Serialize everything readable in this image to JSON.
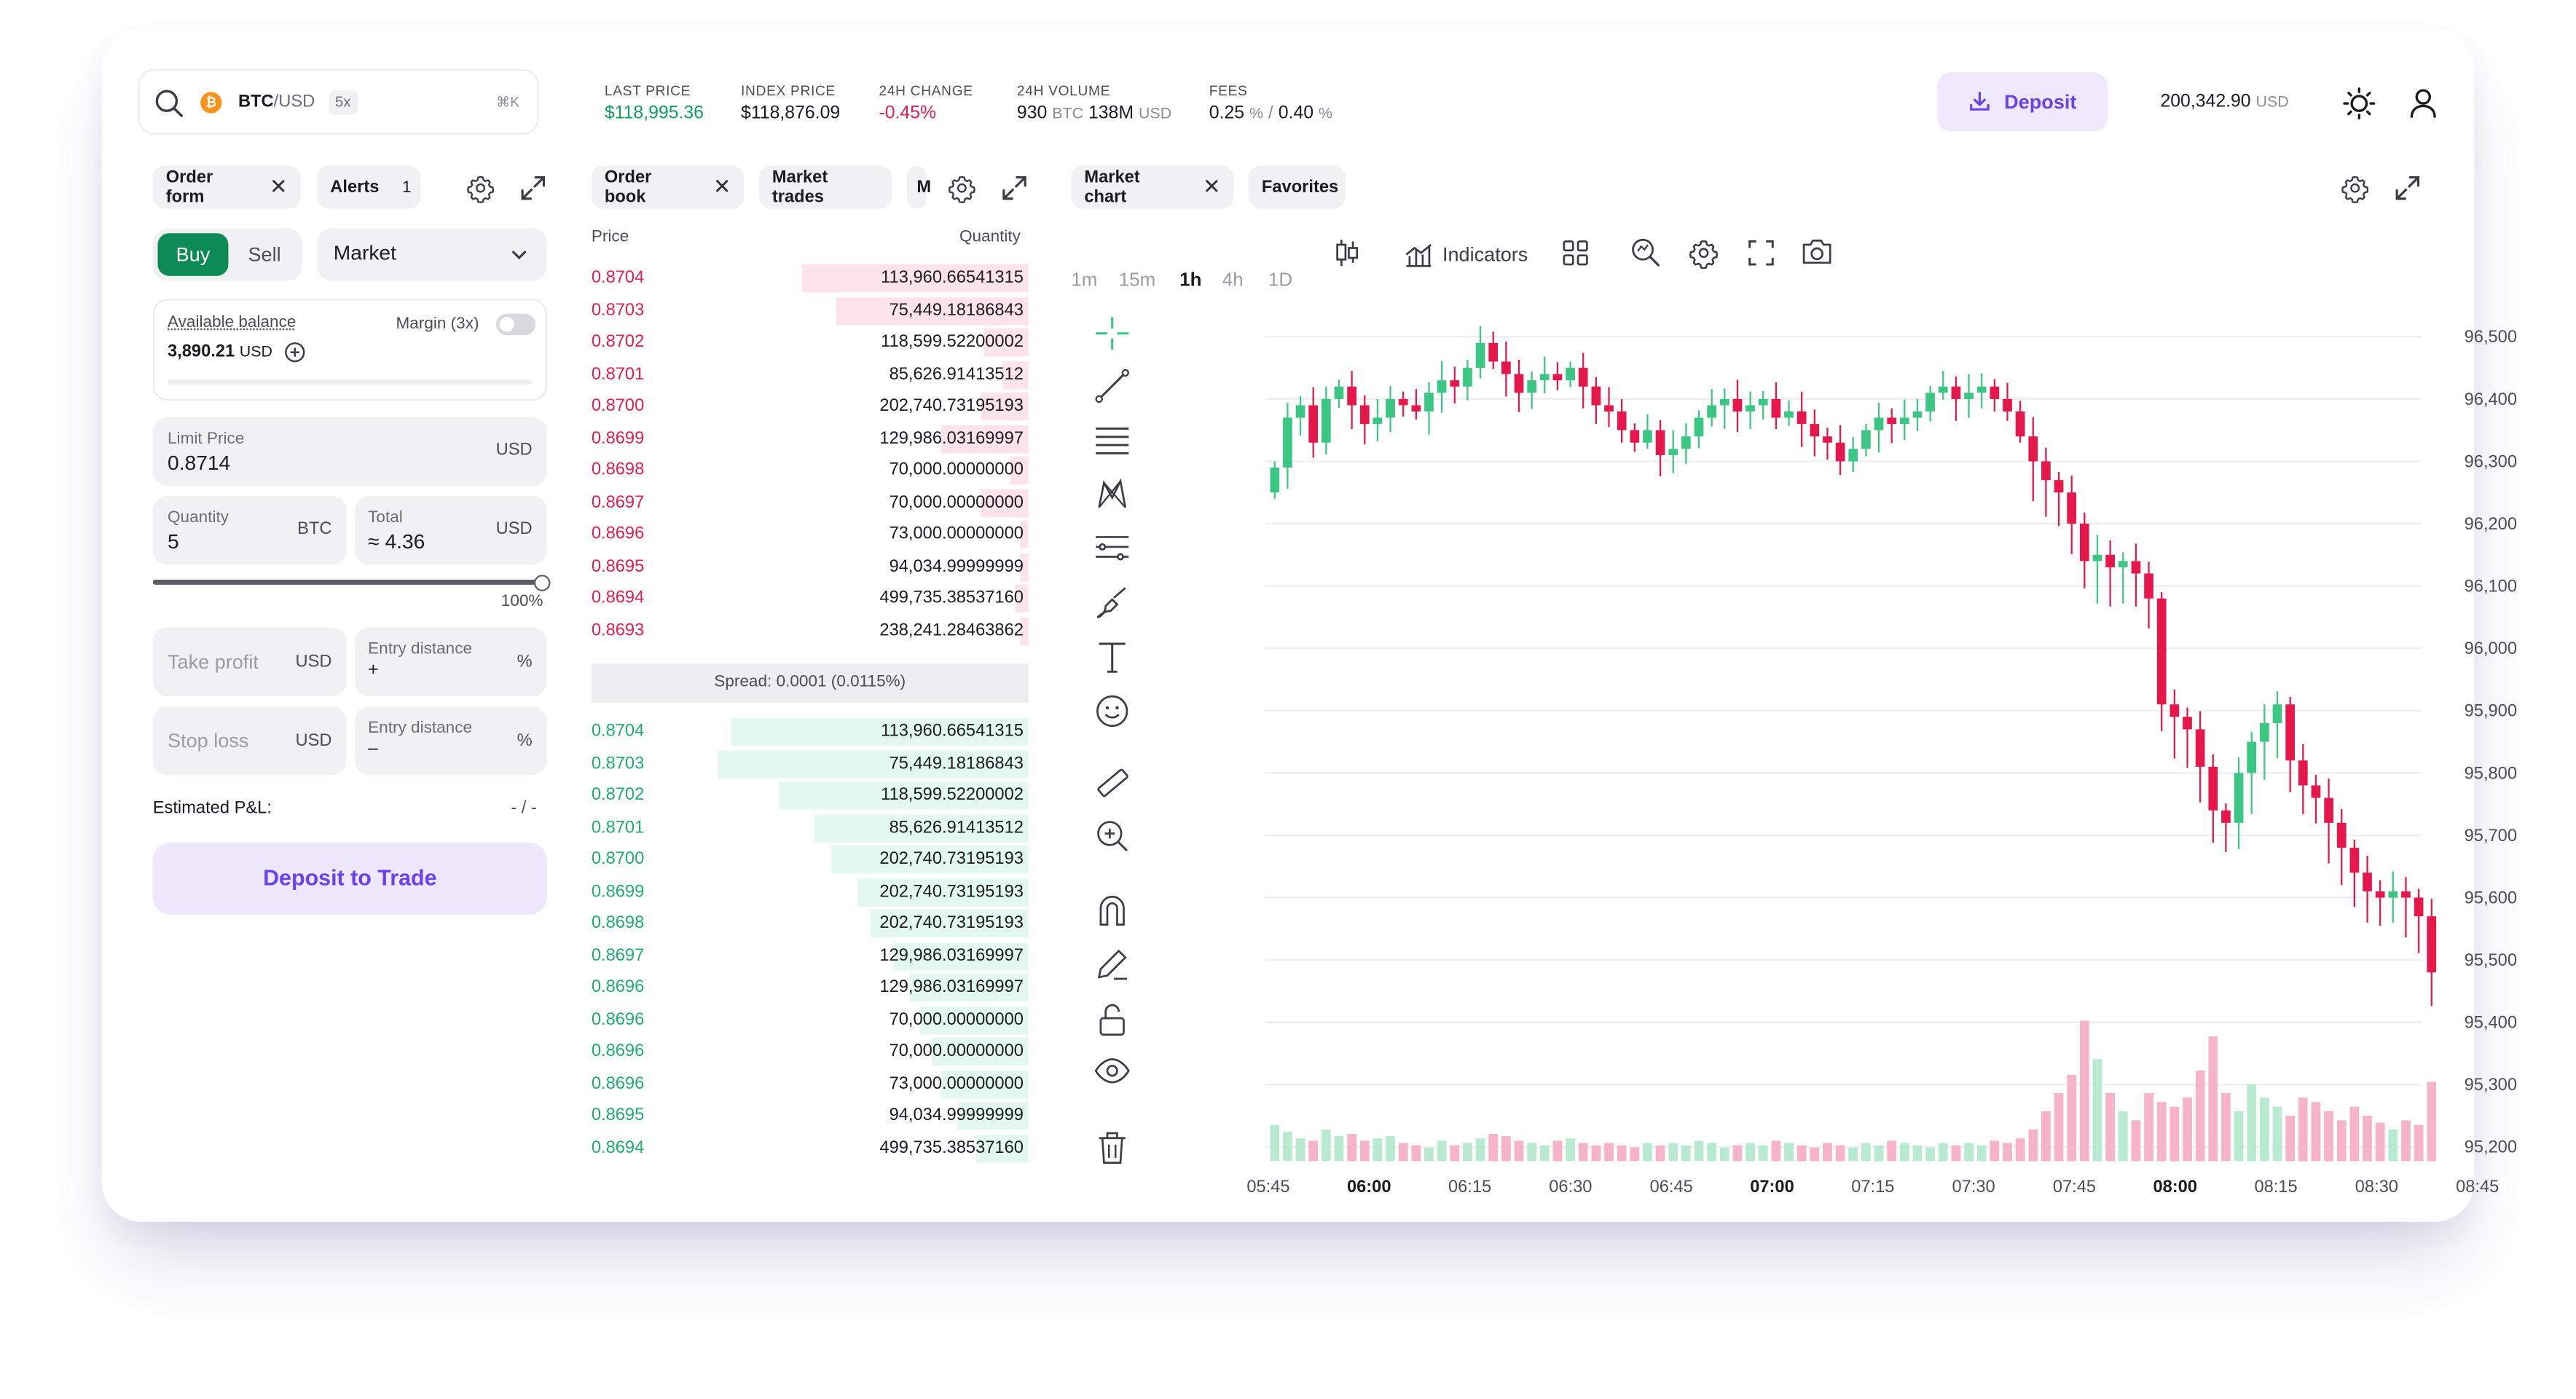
{
  "header": {
    "search": {
      "symbol": "BTC",
      "quote": "/USD",
      "leverage": "5x",
      "shortcut": "⌘K"
    },
    "stats": [
      {
        "label": "LAST PRICE",
        "value": "$118,995.36",
        "color": "#0e9f5b"
      },
      {
        "label": "INDEX PRICE",
        "value": "$118,876.09",
        "color": "#1b1b22"
      },
      {
        "label": "24H CHANGE",
        "value": "-0.45%",
        "color": "#e0204e"
      },
      {
        "label": "24H VOLUME",
        "vol1": "930",
        "vol1_unit": "BTC",
        "vol2": "138M",
        "vol2_unit": "USD"
      },
      {
        "label": "FEES",
        "fee1": "0.25",
        "fee_unit": "%",
        "sep": "/",
        "fee2": "0.40"
      }
    ],
    "deposit_label": "Deposit",
    "balance": "200,342.90",
    "balance_unit": "USD"
  },
  "order_panel": {
    "tabs": [
      {
        "label": "Order form"
      },
      {
        "label": "Alerts",
        "count": "1"
      }
    ],
    "buy_label": "Buy",
    "sell_label": "Sell",
    "order_type": "Market",
    "available_balance_label": "Available balance",
    "available_balance_value": "3,890.21",
    "available_balance_unit": "USD",
    "margin_label": "Margin (3x)",
    "limit_price_label": "Limit Price",
    "limit_price_value": "0.8714",
    "limit_price_unit": "USD",
    "quantity_label": "Quantity",
    "quantity_value": "5",
    "quantity_unit": "BTC",
    "total_label": "Total",
    "total_value": "≈ 4.36",
    "total_unit": "USD",
    "slider_percent": "100%",
    "slider_fraction": 1.0,
    "take_profit_label": "Take profit",
    "take_profit_unit": "USD",
    "entry_distance_label": "Entry distance",
    "entry_distance_plus": "+",
    "entry_distance_minus": "–",
    "percent_unit": "%",
    "stop_loss_label": "Stop loss",
    "stop_loss_unit": "USD",
    "estimated_pnl_label": "Estimated P&L:",
    "estimated_pnl_value": "- / -",
    "deposit_to_trade_label": "Deposit to Trade"
  },
  "order_book": {
    "tabs": [
      {
        "label": "Order book"
      },
      {
        "label": "Market trades"
      },
      {
        "label": "M"
      }
    ],
    "price_header": "Price",
    "quantity_header": "Quantity",
    "asks": [
      {
        "price": "0.8704",
        "qty": "113,960.66541315",
        "depth": 0.52
      },
      {
        "price": "0.8703",
        "qty": "75,449.18186843",
        "depth": 0.44
      },
      {
        "price": "0.8702",
        "qty": "118,599.52200002",
        "depth": 0.1
      },
      {
        "price": "0.8701",
        "qty": "85,626.91413512",
        "depth": 0.06
      },
      {
        "price": "0.8700",
        "qty": "202,740.73195193",
        "depth": 0.11
      },
      {
        "price": "0.8699",
        "qty": "129,986.03169997",
        "depth": 0.2
      },
      {
        "price": "0.8698",
        "qty": "70,000.00000000",
        "depth": 0.04
      },
      {
        "price": "0.8697",
        "qty": "70,000.00000000",
        "depth": 0.11
      },
      {
        "price": "0.8696",
        "qty": "73,000.00000000",
        "depth": 0.02
      },
      {
        "price": "0.8695",
        "qty": "94,034.99999999",
        "depth": 0.02
      },
      {
        "price": "0.8694",
        "qty": "499,735.38537160",
        "depth": 0.03
      },
      {
        "price": "0.8693",
        "qty": "238,241.28463862",
        "depth": 0.02
      }
    ],
    "spread_label": "Spread:",
    "spread_value": "0.0001 (0.0115%)",
    "bids": [
      {
        "price": "0.8704",
        "qty": "113,960.66541315",
        "depth": 0.68
      },
      {
        "price": "0.8703",
        "qty": "75,449.18186843",
        "depth": 0.71
      },
      {
        "price": "0.8702",
        "qty": "118,599.52200002",
        "depth": 0.57
      },
      {
        "price": "0.8701",
        "qty": "85,626.91413512",
        "depth": 0.49
      },
      {
        "price": "0.8700",
        "qty": "202,740.73195193",
        "depth": 0.45
      },
      {
        "price": "0.8699",
        "qty": "202,740.73195193",
        "depth": 0.39
      },
      {
        "price": "0.8698",
        "qty": "202,740.73195193",
        "depth": 0.36
      },
      {
        "price": "0.8697",
        "qty": "129,986.03169997",
        "depth": 0.31
      },
      {
        "price": "0.8696",
        "qty": "129,986.03169997",
        "depth": 0.27
      },
      {
        "price": "0.8696",
        "qty": "70,000.00000000",
        "depth": 0.25
      },
      {
        "price": "0.8696",
        "qty": "70,000.00000000",
        "depth": 0.22
      },
      {
        "price": "0.8696",
        "qty": "73,000.00000000",
        "depth": 0.2
      },
      {
        "price": "0.8695",
        "qty": "94,034.99999999",
        "depth": 0.16
      },
      {
        "price": "0.8694",
        "qty": "499,735.38537160",
        "depth": 0.12
      }
    ]
  },
  "chart_panel": {
    "tabs": [
      {
        "label": "Market chart"
      },
      {
        "label": "Favorites"
      }
    ],
    "timeframes": [
      "1m",
      "15m",
      "1h",
      "4h",
      "1D"
    ],
    "active_timeframe": "1h",
    "indicators_label": "Indicators",
    "colors": {
      "up": "#3cc684",
      "down": "#e5174b",
      "up_vol": "#b8ead2",
      "down_vol": "#f7b3c8"
    }
  },
  "chart_data": {
    "type": "candlestick",
    "y_ticks": [
      "96,500",
      "96,400",
      "96,300",
      "96,200",
      "96,100",
      "96,000",
      "95,900",
      "95,800",
      "95,700",
      "95,600",
      "95,500",
      "95,400",
      "95,300",
      "95,200"
    ],
    "ylim": [
      95150,
      96530
    ],
    "x_ticks": [
      {
        "label": "05:45",
        "bold": false
      },
      {
        "label": "06:00",
        "bold": true
      },
      {
        "label": "06:15",
        "bold": false
      },
      {
        "label": "06:30",
        "bold": false
      },
      {
        "label": "06:45",
        "bold": false
      },
      {
        "label": "07:00",
        "bold": true
      },
      {
        "label": "07:15",
        "bold": false
      },
      {
        "label": "07:30",
        "bold": false
      },
      {
        "label": "07:45",
        "bold": false
      },
      {
        "label": "08:00",
        "bold": true
      },
      {
        "label": "08:15",
        "bold": false
      },
      {
        "label": "08:30",
        "bold": false
      },
      {
        "label": "08:45",
        "bold": false
      }
    ],
    "closes": [
      96290,
      96370,
      96390,
      96330,
      96400,
      96420,
      96390,
      96360,
      96370,
      96400,
      96390,
      96380,
      96410,
      96430,
      96420,
      96450,
      96490,
      96460,
      96440,
      96410,
      96430,
      96440,
      96430,
      96450,
      96420,
      96390,
      96380,
      96350,
      96330,
      96350,
      96310,
      96320,
      96340,
      96370,
      96390,
      96400,
      96380,
      96390,
      96400,
      96370,
      96380,
      96360,
      96340,
      96330,
      96300,
      96320,
      96350,
      96370,
      96360,
      96370,
      96380,
      96410,
      96420,
      96400,
      96410,
      96420,
      96400,
      96380,
      96340,
      96300,
      96270,
      96250,
      96200,
      96140,
      96150,
      96130,
      96140,
      96120,
      96080,
      95910,
      95890,
      95870,
      95810,
      95740,
      95720,
      95800,
      95850,
      95880,
      95910,
      95820,
      95780,
      95760,
      95720,
      95680,
      95640,
      95610,
      95600,
      95610,
      95600,
      95570,
      95480
    ],
    "volumes": [
      16,
      13,
      10,
      9,
      14,
      11,
      12,
      9,
      10,
      11,
      8,
      7,
      6,
      9,
      7,
      8,
      10,
      12,
      11,
      9,
      8,
      7,
      9,
      10,
      8,
      7,
      8,
      7,
      6,
      8,
      7,
      8,
      7,
      9,
      8,
      6,
      7,
      8,
      7,
      9,
      8,
      7,
      6,
      8,
      7,
      6,
      8,
      7,
      9,
      8,
      7,
      6,
      8,
      7,
      8,
      7,
      9,
      8,
      10,
      14,
      22,
      30,
      38,
      62,
      45,
      30,
      22,
      18,
      30,
      26,
      24,
      28,
      40,
      55,
      30,
      22,
      34,
      28,
      24,
      20,
      28,
      26,
      22,
      18,
      24,
      20,
      17,
      14,
      18,
      16,
      35
    ]
  }
}
